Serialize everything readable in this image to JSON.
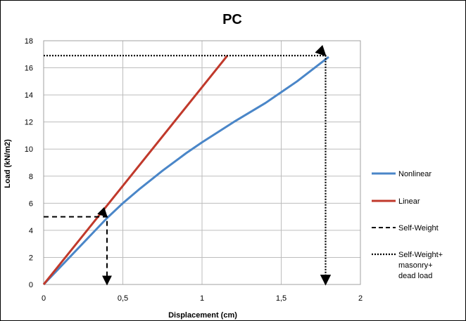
{
  "chart_data": {
    "type": "line",
    "title": "PC",
    "xlabel": "Displacement (cm)",
    "ylabel": "Load (kN/m2)",
    "xlim": [
      0,
      2
    ],
    "ylim": [
      0,
      18
    ],
    "x_ticks": [
      "0",
      "0,5",
      "1",
      "1,5",
      "2"
    ],
    "y_ticks": [
      "0",
      "2",
      "4",
      "6",
      "8",
      "10",
      "12",
      "14",
      "16",
      "18"
    ],
    "grid": "vertical-and-horizontal",
    "legend_position": "right",
    "series": [
      {
        "name": "Nonlinear",
        "color": "#4a86c8",
        "style": "solid",
        "points": [
          [
            0,
            0
          ],
          [
            0.4,
            4.9
          ],
          [
            0.5,
            6.0
          ],
          [
            0.6,
            7.0
          ],
          [
            0.75,
            8.4
          ],
          [
            0.9,
            9.7
          ],
          [
            1.0,
            10.5
          ],
          [
            1.2,
            12.0
          ],
          [
            1.4,
            13.4
          ],
          [
            1.6,
            15.0
          ],
          [
            1.8,
            16.8
          ]
        ]
      },
      {
        "name": "Linear",
        "color": "#c0392b",
        "style": "solid",
        "points": [
          [
            0,
            0
          ],
          [
            1.16,
            16.9
          ]
        ]
      },
      {
        "name": "Self-Weight",
        "color": "#000000",
        "style": "dashed",
        "arrow": true,
        "points": [
          [
            0,
            5.0
          ],
          [
            0.4,
            5.0
          ],
          [
            0.4,
            0
          ]
        ]
      },
      {
        "name": "Self-Weight+ masonry+ dead load",
        "color": "#000000",
        "style": "dotted",
        "arrow": true,
        "points": [
          [
            0,
            16.9
          ],
          [
            1.78,
            16.9
          ],
          [
            1.78,
            0
          ]
        ]
      }
    ],
    "legend": [
      {
        "label_lines": [
          "Nonlinear"
        ]
      },
      {
        "label_lines": [
          "Linear"
        ]
      },
      {
        "label_lines": [
          "Self-Weight"
        ]
      },
      {
        "label_lines": [
          "Self-Weight+",
          "masonry+",
          "dead load"
        ]
      }
    ]
  }
}
